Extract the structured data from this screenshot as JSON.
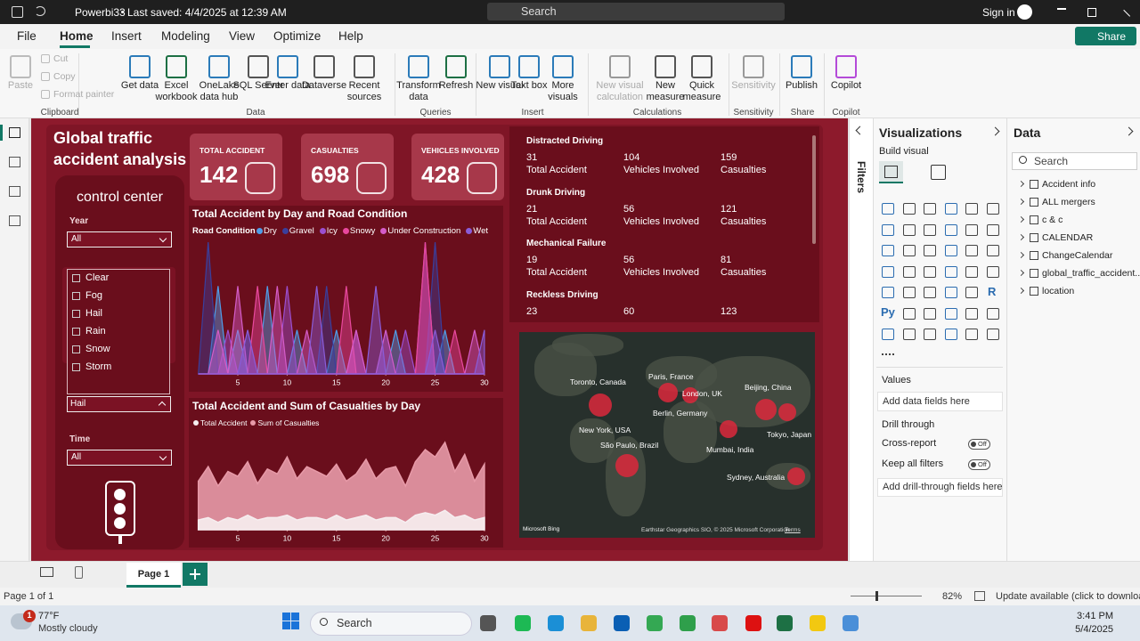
{
  "titlebar": {
    "file_name": "Powerbi33",
    "saved": "Last saved: 4/4/2025 at 12:39 AM",
    "search": "Search",
    "sign_in": "Sign in"
  },
  "menu": {
    "tabs": [
      "File",
      "Home",
      "Insert",
      "Modeling",
      "View",
      "Optimize",
      "Help"
    ],
    "share": "Share"
  },
  "ribbon": {
    "groups": [
      {
        "label": "Clipboard",
        "buttons": [
          "Paste",
          "Cut",
          "Copy",
          "Format painter"
        ]
      },
      {
        "label": "Data",
        "buttons": [
          "Get data",
          "Excel workbook",
          "OneLake data hub",
          "SQL Server",
          "Enter data",
          "Dataverse",
          "Recent sources"
        ]
      },
      {
        "label": "Queries",
        "buttons": [
          "Transform data",
          "Refresh"
        ]
      },
      {
        "label": "Insert",
        "buttons": [
          "New visual",
          "Text box",
          "More visuals"
        ]
      },
      {
        "label": "Calculations",
        "buttons": [
          "New visual calculation",
          "New measure",
          "Quick measure"
        ]
      },
      {
        "label": "Sensitivity",
        "buttons": [
          "Sensitivity"
        ]
      },
      {
        "label": "Share",
        "buttons": [
          "Publish"
        ]
      },
      {
        "label": "Copilot",
        "buttons": [
          "Copilot"
        ]
      }
    ]
  },
  "report": {
    "title": "Global traffic accident analysis",
    "control_title": "control center",
    "slicers": [
      {
        "label": "Year",
        "value": "All"
      },
      {
        "label": "Time",
        "value": "All"
      }
    ],
    "dropdown": {
      "items": [
        "Clear",
        "Fog",
        "Hail",
        "Rain",
        "Snow",
        "Storm"
      ],
      "value": "Hail"
    },
    "kpis": [
      {
        "label": "TOTAL ACCIDENT",
        "value": 142
      },
      {
        "label": "CASUALTIES",
        "value": 698
      },
      {
        "label": "VEHICLES INVOLVED",
        "value": 428
      }
    ],
    "table": {
      "columns": [
        "Total Accident",
        "Vehicles Involved",
        "Casualties"
      ],
      "rows": [
        {
          "cause": "Distracted Driving",
          "values": [
            31,
            104,
            159
          ]
        },
        {
          "cause": "Drunk Driving",
          "values": [
            21,
            56,
            121
          ]
        },
        {
          "cause": "Mechanical Failure",
          "values": [
            19,
            56,
            81
          ]
        },
        {
          "cause": "Reckless Driving",
          "values": [
            23,
            60,
            123
          ]
        }
      ]
    },
    "map": {
      "cities": [
        "Toronto, Canada",
        "Paris, France",
        "London, UK",
        "Beijing, China",
        "Berlin, Germany",
        "New York, USA",
        "Tokyo, Japan",
        "São Paulo, Brazil",
        "Mumbai, India",
        "Sydney, Australia"
      ],
      "logo": "Microsoft Bing",
      "credits": "Earthstar Geographics SIO, © 2025 Microsoft Corporation",
      "terms": "Terms"
    }
  },
  "chart_data": [
    {
      "type": "area",
      "title": "Total Accident by Day and Road Condition",
      "legend_title": "Road Condition",
      "x": [
        1,
        2,
        3,
        4,
        5,
        6,
        7,
        8,
        9,
        10,
        11,
        12,
        13,
        14,
        15,
        16,
        17,
        18,
        19,
        20,
        21,
        22,
        23,
        24,
        25,
        26,
        27,
        28,
        29,
        30
      ],
      "xlim": [
        1,
        31
      ],
      "xticks": [
        5,
        10,
        15,
        20,
        25,
        30
      ],
      "ylim": [
        0,
        3
      ],
      "series": [
        {
          "name": "Dry",
          "color": "#4f9de8",
          "values": [
            0,
            0,
            2,
            0,
            1,
            0,
            0,
            2,
            0,
            0,
            1,
            0,
            0,
            0,
            1,
            0,
            0,
            0,
            0,
            0,
            1,
            0,
            0,
            0,
            0,
            1,
            0,
            0,
            0,
            0
          ]
        },
        {
          "name": "Gravel",
          "color": "#3a3f9c",
          "values": [
            0,
            3,
            0,
            0,
            0,
            1,
            0,
            0,
            0,
            0,
            0,
            0,
            0,
            2,
            0,
            0,
            0,
            0,
            0,
            1,
            0,
            0,
            0,
            0,
            3,
            0,
            0,
            0,
            0,
            0
          ]
        },
        {
          "name": "Icy",
          "color": "#9b4fd0",
          "values": [
            0,
            0,
            0,
            1,
            0,
            0,
            0,
            0,
            0,
            2,
            0,
            0,
            0,
            0,
            0,
            0,
            1,
            0,
            0,
            0,
            0,
            1,
            0,
            3,
            0,
            0,
            0,
            0,
            0,
            0
          ]
        },
        {
          "name": "Snowy",
          "color": "#e8489e",
          "values": [
            0,
            0,
            0,
            0,
            0,
            0,
            2,
            0,
            0,
            0,
            0,
            0,
            0,
            0,
            0,
            2,
            0,
            0,
            0,
            0,
            0,
            0,
            0,
            3,
            0,
            0,
            1,
            0,
            0,
            0
          ]
        },
        {
          "name": "Under Construction",
          "color": "#d45cc8",
          "values": [
            0,
            0,
            1,
            0,
            2,
            0,
            0,
            0,
            2,
            0,
            0,
            1,
            0,
            0,
            0,
            0,
            1,
            0,
            0,
            1,
            0,
            0,
            0,
            0,
            0,
            0,
            0,
            0,
            1,
            0
          ]
        },
        {
          "name": "Wet",
          "color": "#8a5cd8",
          "values": [
            0,
            0,
            0,
            0,
            0,
            1,
            0,
            0,
            0,
            0,
            0,
            0,
            2,
            0,
            0,
            0,
            0,
            0,
            2,
            0,
            0,
            0,
            0,
            0,
            1,
            0,
            0,
            0,
            0,
            1
          ]
        }
      ]
    },
    {
      "type": "area",
      "title": "Total Accident and Sum of Casualties by Day",
      "x": [
        1,
        2,
        3,
        4,
        5,
        6,
        7,
        8,
        9,
        10,
        11,
        12,
        13,
        14,
        15,
        16,
        17,
        18,
        19,
        20,
        21,
        22,
        23,
        24,
        25,
        26,
        27,
        28,
        29,
        30
      ],
      "xlim": [
        1,
        31
      ],
      "xticks": [
        5,
        10,
        15,
        20,
        25,
        30
      ],
      "ylim": [
        0,
        40
      ],
      "series": [
        {
          "name": "Total Accident",
          "color": "#f6eef0",
          "values": [
            4,
            5,
            3,
            5,
            4,
            6,
            4,
            5,
            5,
            6,
            4,
            5,
            5,
            4,
            6,
            4,
            5,
            6,
            4,
            5,
            5,
            3,
            6,
            7,
            6,
            8,
            5,
            6,
            4,
            5
          ]
        },
        {
          "name": "Sum of Casualties",
          "color": "#e79aa8",
          "values": [
            20,
            26,
            18,
            24,
            22,
            28,
            19,
            25,
            23,
            30,
            21,
            26,
            24,
            22,
            27,
            20,
            23,
            29,
            21,
            25,
            26,
            18,
            28,
            33,
            30,
            36,
            24,
            31,
            20,
            27
          ]
        }
      ]
    }
  ],
  "panes": {
    "filters": "Filters",
    "visualizations": {
      "title": "Visualizations",
      "build": "Build visual",
      "icon_labels": [
        "Py",
        "R"
      ],
      "values": "Values",
      "values_well": "Add data fields here",
      "drill": "Drill through",
      "cross_report": "Cross-report",
      "keep_filters": "Keep all filters",
      "toggle": "Off",
      "drill_well": "Add drill-through fields here"
    },
    "data": {
      "title": "Data",
      "search": "Search",
      "tables": [
        "Accident info",
        "ALL mergers",
        "c & c",
        "CALENDAR",
        "ChangeCalendar",
        "global_traffic_accident...",
        "location"
      ]
    }
  },
  "status": {
    "page_tab": "Page 1",
    "page_count": "Page 1 of 1",
    "zoom": "82%",
    "update": "Update available (click to download)"
  },
  "taskbar": {
    "badge": 1,
    "temperature": "77°F",
    "weather": "Mostly cloudy",
    "search": "Search",
    "time": "3:41 PM",
    "date": "5/4/2025"
  }
}
